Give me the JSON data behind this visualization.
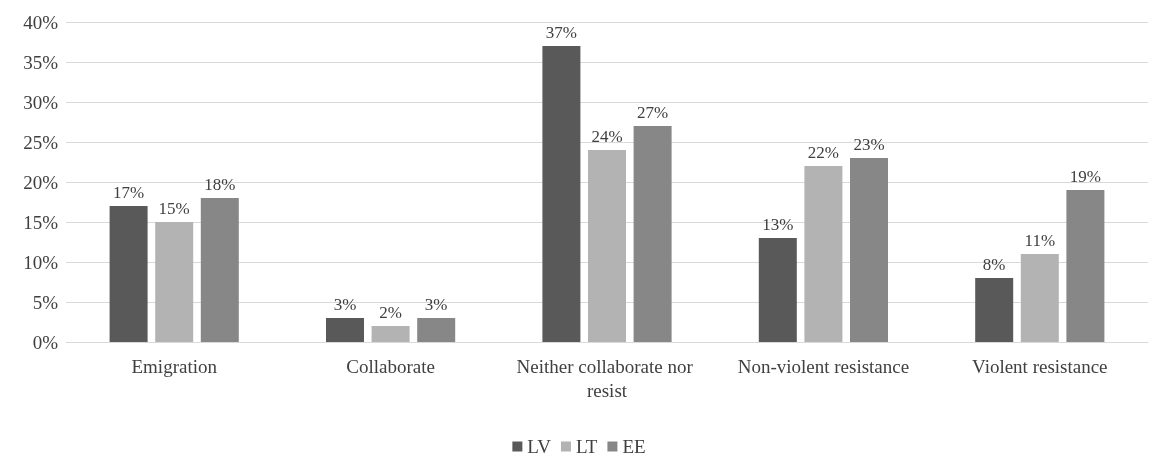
{
  "chart_data": {
    "type": "bar",
    "categories": [
      "Emigration",
      "Collaborate",
      "Neither collaborate nor resist",
      "Non-violent resistance",
      "Violent resistance"
    ],
    "series": [
      {
        "name": "LV",
        "color": "#595959",
        "values": [
          17,
          3,
          37,
          13,
          8
        ],
        "value_labels": [
          "17%",
          "3%",
          "37%",
          "13%",
          "8%"
        ]
      },
      {
        "name": "LT",
        "color": "#b3b3b3",
        "values": [
          15,
          2,
          24,
          22,
          11
        ],
        "value_labels": [
          "15%",
          "2%",
          "24%",
          "22%",
          "11%"
        ]
      },
      {
        "name": "EE",
        "color": "#878787",
        "values": [
          18,
          3,
          27,
          23,
          19
        ],
        "value_labels": [
          "18%",
          "3%",
          "27%",
          "23%",
          "19%"
        ]
      }
    ],
    "ylim": [
      0,
      40
    ],
    "yticks": [
      {
        "value": 0,
        "label": "0%"
      },
      {
        "value": 5,
        "label": "5%"
      },
      {
        "value": 10,
        "label": "10%"
      },
      {
        "value": 15,
        "label": "15%"
      },
      {
        "value": 20,
        "label": "20%"
      },
      {
        "value": 25,
        "label": "25%"
      },
      {
        "value": 30,
        "label": "30%"
      },
      {
        "value": 35,
        "label": "35%"
      },
      {
        "value": 40,
        "label": "40%"
      }
    ],
    "grid": "y",
    "legend": "bottom"
  }
}
